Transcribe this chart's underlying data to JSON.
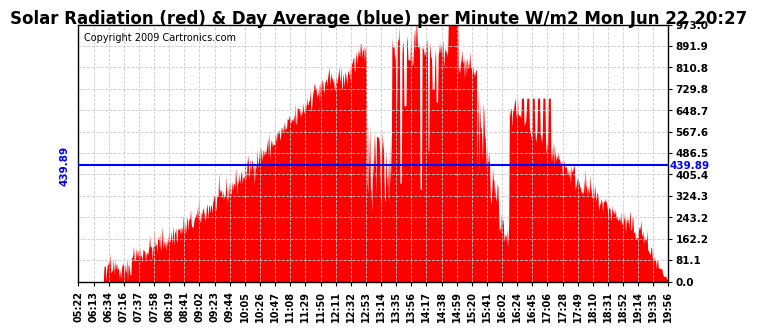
{
  "title": "Solar Radiation (red) & Day Average (blue) per Minute W/m2 Mon Jun 22 20:27",
  "copyright": "Copyright 2009 Cartronics.com",
  "y_max": 973.0,
  "y_min": 0.0,
  "y_ticks": [
    0.0,
    81.1,
    162.2,
    243.2,
    324.3,
    405.4,
    486.5,
    567.6,
    648.7,
    729.8,
    810.8,
    891.9,
    973.0
  ],
  "y_right_labels": [
    "0.0",
    "81.1",
    "162.2",
    "243.2",
    "324.3",
    "405.4",
    "486.5",
    "567.6",
    "648.7",
    "729.8",
    "810.8",
    "891.9",
    "973.0"
  ],
  "day_average": 439.89,
  "day_average_label": "439.89",
  "fill_color": "#ff0000",
  "line_color": "#0000ff",
  "bg_color": "#ffffff",
  "grid_color": "#cccccc",
  "x_labels": [
    "05:22",
    "06:13",
    "06:34",
    "07:16",
    "07:37",
    "07:58",
    "08:19",
    "08:41",
    "09:02",
    "09:23",
    "09:44",
    "10:05",
    "10:26",
    "10:47",
    "11:08",
    "11:29",
    "11:50",
    "12:11",
    "12:32",
    "12:53",
    "13:14",
    "13:35",
    "13:56",
    "14:17",
    "14:38",
    "14:59",
    "15:20",
    "15:41",
    "16:02",
    "16:24",
    "16:45",
    "17:06",
    "17:28",
    "17:49",
    "18:10",
    "18:31",
    "18:52",
    "19:14",
    "19:35",
    "19:56"
  ],
  "num_points": 880,
  "title_fontsize": 12,
  "copyright_fontsize": 7,
  "tick_fontsize": 7.5,
  "label_fontsize": 7
}
